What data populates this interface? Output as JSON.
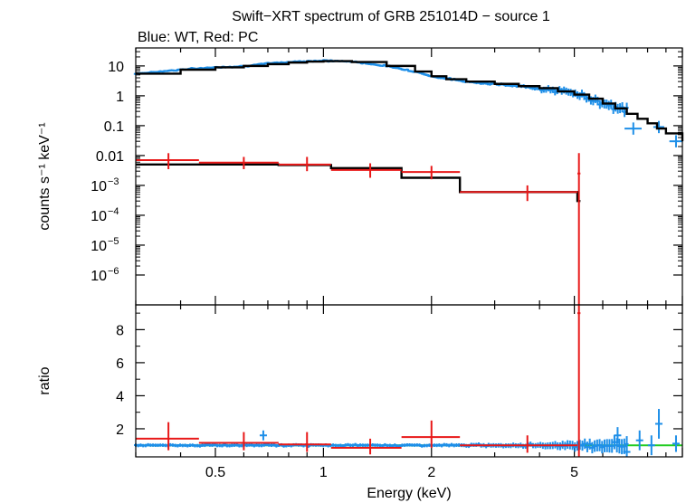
{
  "title": "Swift−XRT spectrum of GRB 251014D − source 1",
  "subtitle": "Blue: WT, Red: PC",
  "colors": {
    "wt": "#1e8fe8",
    "pc": "#e81818",
    "model": "#000000",
    "unity": "#22cc22"
  },
  "chart_data": [
    {
      "type": "line",
      "panel": "spectrum",
      "title": "Swift−XRT spectrum of GRB 251014D − source 1",
      "xlabel": "Energy (keV)",
      "ylabel": "counts s⁻¹ keV⁻¹",
      "xscale": "log",
      "yscale": "log",
      "xlim": [
        0.3,
        10
      ],
      "ylim": [
        1e-07,
        40
      ],
      "y_ticks": [
        {
          "value": 10,
          "label": "10"
        },
        {
          "value": 1,
          "label": "1"
        },
        {
          "value": 0.1,
          "label": "0.1"
        },
        {
          "value": 0.01,
          "label": "0.01"
        },
        {
          "value": 0.001,
          "base": "10",
          "exp": "−3"
        },
        {
          "value": 0.0001,
          "base": "10",
          "exp": "−4"
        },
        {
          "value": 1e-05,
          "base": "10",
          "exp": "−5"
        },
        {
          "value": 1e-06,
          "base": "10",
          "exp": "−6"
        }
      ],
      "series": [
        {
          "name": "WT data",
          "color": "#1e8fe8",
          "trend": {
            "x": [
              0.3,
              0.4,
              0.5,
              0.6,
              0.7,
              0.8,
              0.9,
              1.0,
              1.2,
              1.5,
              1.8,
              2.0,
              2.5,
              3.0,
              4.0,
              5.0,
              6.0,
              7.0,
              8.0,
              9.0,
              10.0
            ],
            "y": [
              5.5,
              7.5,
              9.0,
              9.8,
              12.0,
              13.5,
              14.5,
              15.0,
              14.0,
              10.0,
              6.5,
              4.5,
              3.0,
              2.5,
              1.8,
              1.2,
              0.6,
              0.3,
              0.12,
              0.06,
              0.03
            ]
          },
          "outliers": [
            {
              "x": 7.3,
              "y": 0.08,
              "xerr": 0.4
            },
            {
              "x": 8.6,
              "y": 0.09,
              "xerr": 0.3
            },
            {
              "x": 9.6,
              "y": 0.03,
              "xerr": 0.4
            }
          ]
        },
        {
          "name": "PC data",
          "color": "#e81818",
          "points": [
            {
              "x": 0.37,
              "xlo": 0.3,
              "xhi": 0.45,
              "y": 0.007,
              "ylo": 0.0035,
              "yhi": 0.012
            },
            {
              "x": 0.6,
              "xlo": 0.45,
              "xhi": 0.75,
              "y": 0.0058,
              "ylo": 0.0035,
              "yhi": 0.009
            },
            {
              "x": 0.9,
              "xlo": 0.75,
              "xhi": 1.05,
              "y": 0.005,
              "ylo": 0.003,
              "yhi": 0.009
            },
            {
              "x": 1.35,
              "xlo": 1.05,
              "xhi": 1.65,
              "y": 0.0033,
              "ylo": 0.0018,
              "yhi": 0.0055
            },
            {
              "x": 2.0,
              "xlo": 1.65,
              "xhi": 2.4,
              "y": 0.0028,
              "ylo": 0.0016,
              "yhi": 0.0045
            },
            {
              "x": 3.7,
              "xlo": 2.4,
              "xhi": 5.1,
              "y": 0.0006,
              "ylo": 0.0003,
              "yhi": 0.001
            },
            {
              "x": 5.15,
              "xlo": 5.1,
              "xhi": 5.2,
              "y": 0.0025,
              "ylo": 1e-07,
              "yhi": 0.012
            }
          ]
        },
        {
          "name": "WT model",
          "color": "#000000",
          "x": [
            0.3,
            0.4,
            0.5,
            0.6,
            0.7,
            0.8,
            0.9,
            1.0,
            1.2,
            1.5,
            1.8,
            2.0,
            2.2,
            2.5,
            3.0,
            3.5,
            4.0,
            4.5,
            5.0,
            5.5,
            6.0,
            6.5,
            7.0,
            7.5,
            8.0,
            8.5,
            9.0,
            10.0
          ],
          "y": [
            5.5,
            7.5,
            9.0,
            10.0,
            11.5,
            13.0,
            14.0,
            14.5,
            13.5,
            10.0,
            6.5,
            4.5,
            3.6,
            3.0,
            2.5,
            2.1,
            1.8,
            1.4,
            1.1,
            0.8,
            0.55,
            0.38,
            0.25,
            0.17,
            0.12,
            0.08,
            0.055,
            0.03
          ],
          "step": true
        },
        {
          "name": "PC model",
          "color": "#000000",
          "bins": [
            {
              "xlo": 0.3,
              "xhi": 0.45,
              "y": 0.005
            },
            {
              "xlo": 0.45,
              "xhi": 0.75,
              "y": 0.005
            },
            {
              "xlo": 0.75,
              "xhi": 1.05,
              "y": 0.0048
            },
            {
              "xlo": 1.05,
              "xhi": 1.65,
              "y": 0.0038
            },
            {
              "xlo": 1.65,
              "xhi": 2.4,
              "y": 0.0018
            },
            {
              "xlo": 2.4,
              "xhi": 5.1,
              "y": 0.0006
            },
            {
              "xlo": 5.1,
              "xhi": 5.2,
              "y": 0.0003
            }
          ]
        }
      ]
    },
    {
      "type": "scatter",
      "panel": "ratio",
      "xlabel": "Energy (keV)",
      "ylabel": "ratio",
      "xscale": "log",
      "yscale": "linear",
      "xlim": [
        0.3,
        10
      ],
      "ylim": [
        0.3,
        9.5
      ],
      "x_ticks": [
        {
          "value": 0.5,
          "label": "0.5"
        },
        {
          "value": 1,
          "label": "1"
        },
        {
          "value": 2,
          "label": "2"
        },
        {
          "value": 5,
          "label": "5"
        }
      ],
      "y_ticks": [
        {
          "value": 2,
          "label": "2"
        },
        {
          "value": 4,
          "label": "4"
        },
        {
          "value": 6,
          "label": "6"
        },
        {
          "value": 8,
          "label": "8"
        }
      ],
      "unity_line": 1.0,
      "series": [
        {
          "name": "WT ratio",
          "color": "#1e8fe8",
          "center": 1.0,
          "points": [
            {
              "x": 0.68,
              "y": 1.6,
              "yerr": 0.3
            },
            {
              "x": 6.6,
              "y": 1.6,
              "yerr": 0.5
            },
            {
              "x": 7.0,
              "y": 0.6,
              "yerr": 0.4
            },
            {
              "x": 7.6,
              "y": 1.3,
              "yerr": 0.6
            },
            {
              "x": 8.2,
              "y": 1.0,
              "yerr": 0.6
            },
            {
              "x": 8.6,
              "y": 2.3,
              "yerr": 0.9
            },
            {
              "x": 9.6,
              "y": 1.1,
              "yerr": 0.5
            }
          ]
        },
        {
          "name": "PC ratio",
          "color": "#e81818",
          "points": [
            {
              "x": 0.37,
              "xlo": 0.3,
              "xhi": 0.45,
              "y": 1.4,
              "ylo": 0.7,
              "yhi": 2.4
            },
            {
              "x": 0.6,
              "xlo": 0.45,
              "xhi": 0.75,
              "y": 1.15,
              "ylo": 0.7,
              "yhi": 1.8
            },
            {
              "x": 0.9,
              "xlo": 0.75,
              "xhi": 1.05,
              "y": 1.05,
              "ylo": 0.6,
              "yhi": 1.8
            },
            {
              "x": 1.35,
              "xlo": 1.05,
              "xhi": 1.65,
              "y": 0.85,
              "ylo": 0.45,
              "yhi": 1.4
            },
            {
              "x": 2.0,
              "xlo": 1.65,
              "xhi": 2.4,
              "y": 1.5,
              "ylo": 0.85,
              "yhi": 2.5
            },
            {
              "x": 3.7,
              "xlo": 2.4,
              "xhi": 5.1,
              "y": 1.0,
              "ylo": 0.55,
              "yhi": 1.6
            },
            {
              "x": 5.15,
              "xlo": 5.1,
              "xhi": 5.2,
              "y": 9.0,
              "ylo": 0.3,
              "yhi": 9.5
            }
          ]
        }
      ]
    }
  ]
}
